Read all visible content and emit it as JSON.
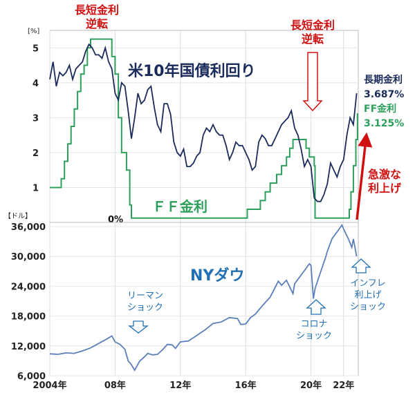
{
  "chart_data": [
    {
      "type": "line",
      "ylabel": "[%]",
      "ylim": [
        0,
        5.5
      ],
      "yticks": [
        "1",
        "2",
        "3",
        "4",
        "5"
      ],
      "zero_label": "0%",
      "series": [
        {
          "name": "米10年国債利回り",
          "color": "#1a2a5a",
          "x": [
            2004.0,
            2004.2,
            2004.4,
            2004.6,
            2004.8,
            2005.0,
            2005.2,
            2005.4,
            2005.6,
            2005.8,
            2006.0,
            2006.2,
            2006.4,
            2006.6,
            2006.8,
            2007.0,
            2007.2,
            2007.4,
            2007.6,
            2007.8,
            2008.0,
            2008.2,
            2008.4,
            2008.6,
            2008.8,
            2009.0,
            2009.2,
            2009.4,
            2009.6,
            2009.8,
            2010.0,
            2010.2,
            2010.4,
            2010.6,
            2010.8,
            2011.0,
            2011.2,
            2011.4,
            2011.6,
            2011.8,
            2012.0,
            2012.2,
            2012.4,
            2012.6,
            2012.8,
            2013.0,
            2013.2,
            2013.4,
            2013.6,
            2013.8,
            2014.0,
            2014.2,
            2014.4,
            2014.6,
            2014.8,
            2015.0,
            2015.2,
            2015.4,
            2015.6,
            2015.8,
            2016.0,
            2016.2,
            2016.4,
            2016.6,
            2016.8,
            2017.0,
            2017.2,
            2017.4,
            2017.6,
            2017.8,
            2018.0,
            2018.2,
            2018.4,
            2018.6,
            2018.8,
            2019.0,
            2019.2,
            2019.4,
            2019.6,
            2019.8,
            2020.0,
            2020.2,
            2020.4,
            2020.6,
            2020.8,
            2021.0,
            2021.2,
            2021.4,
            2021.6,
            2021.8,
            2022.0,
            2022.2,
            2022.4,
            2022.6,
            2022.8
          ],
          "values": [
            4.1,
            4.6,
            3.9,
            4.3,
            4.2,
            4.3,
            4.5,
            4.1,
            4.4,
            4.5,
            4.6,
            4.9,
            5.1,
            5.0,
            4.8,
            4.8,
            4.7,
            5.0,
            4.6,
            4.4,
            3.7,
            3.5,
            4.0,
            3.9,
            3.2,
            2.4,
            3.0,
            3.7,
            3.4,
            3.5,
            3.8,
            3.9,
            3.3,
            2.8,
            2.6,
            3.4,
            3.4,
            3.1,
            2.3,
            2.0,
            1.9,
            2.1,
            1.6,
            1.6,
            1.7,
            1.9,
            2.0,
            2.5,
            2.7,
            2.6,
            2.8,
            2.6,
            2.5,
            2.5,
            2.2,
            1.8,
            2.0,
            2.3,
            2.2,
            2.2,
            2.0,
            1.8,
            1.5,
            1.6,
            2.3,
            2.5,
            2.4,
            2.2,
            2.2,
            2.4,
            2.6,
            2.8,
            2.9,
            3.0,
            3.2,
            2.7,
            2.5,
            2.1,
            1.6,
            1.8,
            1.6,
            0.7,
            0.6,
            0.6,
            0.8,
            1.1,
            1.7,
            1.5,
            1.3,
            1.6,
            1.8,
            2.5,
            3.0,
            2.8,
            3.7
          ]
        },
        {
          "name": "FF金利",
          "color": "#2ca05a",
          "x": [
            2004.0,
            2004.5,
            2004.7,
            2004.9,
            2005.1,
            2005.3,
            2005.5,
            2005.7,
            2005.9,
            2006.1,
            2006.3,
            2006.5,
            2007.6,
            2007.8,
            2008.0,
            2008.2,
            2008.4,
            2008.7,
            2008.9,
            2009.0,
            2015.9,
            2016.1,
            2016.9,
            2017.2,
            2017.5,
            2017.9,
            2018.2,
            2018.5,
            2018.7,
            2018.9,
            2019.5,
            2019.7,
            2019.9,
            2020.2,
            2020.25,
            2022.2,
            2022.35,
            2022.45,
            2022.6,
            2022.75,
            2022.85
          ],
          "values": [
            1.0,
            1.0,
            1.25,
            1.75,
            2.25,
            2.75,
            3.25,
            3.75,
            4.25,
            4.5,
            5.0,
            5.25,
            5.25,
            4.75,
            4.25,
            3.0,
            2.0,
            1.5,
            0.5,
            0.125,
            0.125,
            0.375,
            0.625,
            0.875,
            1.125,
            1.375,
            1.625,
            1.875,
            2.125,
            2.375,
            2.375,
            2.125,
            1.875,
            1.625,
            0.125,
            0.125,
            0.375,
            0.875,
            1.625,
            2.375,
            3.125
          ]
        }
      ]
    },
    {
      "type": "line",
      "ylabel": "【ドル】",
      "ylim": [
        6000,
        36000
      ],
      "yticks": [
        "6,000",
        "12,000",
        "18,000",
        "24,000",
        "30,000",
        "36,000"
      ],
      "xticks": [
        "2004年",
        "08年",
        "12年",
        "16年",
        "20年",
        "22年"
      ],
      "series": [
        {
          "name": "NYダウ",
          "color": "#5a7fb8",
          "x": [
            2004.0,
            2004.5,
            2005.0,
            2005.5,
            2006.0,
            2006.5,
            2007.0,
            2007.5,
            2007.8,
            2008.0,
            2008.3,
            2008.6,
            2008.8,
            2009.0,
            2009.2,
            2009.5,
            2009.8,
            2010.0,
            2010.3,
            2010.6,
            2010.9,
            2011.2,
            2011.5,
            2011.7,
            2012.0,
            2012.5,
            2013.0,
            2013.5,
            2014.0,
            2014.5,
            2015.0,
            2015.5,
            2015.7,
            2016.0,
            2016.3,
            2016.6,
            2017.0,
            2017.5,
            2018.0,
            2018.2,
            2018.5,
            2018.9,
            2019.0,
            2019.5,
            2019.9,
            2020.0,
            2020.15,
            2020.25,
            2020.5,
            2020.9,
            2021.0,
            2021.3,
            2021.6,
            2021.9,
            2022.0,
            2022.3,
            2022.5,
            2022.6,
            2022.8
          ],
          "values": [
            10400,
            10300,
            10600,
            10500,
            11000,
            11600,
            12500,
            13400,
            14000,
            12800,
            12300,
            11300,
            9000,
            8200,
            7100,
            8900,
            9800,
            10500,
            10200,
            10300,
            11200,
            12300,
            12200,
            11500,
            12800,
            13000,
            14100,
            15200,
            16500,
            16800,
            17700,
            17500,
            16300,
            16400,
            17700,
            18400,
            20000,
            21800,
            25000,
            24200,
            25200,
            22500,
            24500,
            26700,
            28500,
            28200,
            21500,
            23500,
            26000,
            29800,
            31000,
            33600,
            34900,
            36300,
            35500,
            33500,
            31800,
            33500,
            30000
          ]
        }
      ]
    }
  ],
  "annotations": {
    "inversion_label": "長短金利\n逆転",
    "title_10y": "米10年国債利回り",
    "title_ff": "ＦＦ金利",
    "title_dow": "NYダウ",
    "legend_10y_name": "長期金利",
    "legend_10y_value": "3.687%",
    "legend_ff_name": "FF金利",
    "legend_ff_value": "3.125%",
    "rate_hike": "急激な\n利上げ",
    "lehman": "リーマン\nショック",
    "corona": "コロナ\nショック",
    "inflation": "インフレ\n利上げ\nショック"
  },
  "colors": {
    "red": "#d01010",
    "navy": "#1a2a5a",
    "green": "#2ca05a",
    "blue_text": "#1f6fb4",
    "dow": "#5a7fb8"
  }
}
